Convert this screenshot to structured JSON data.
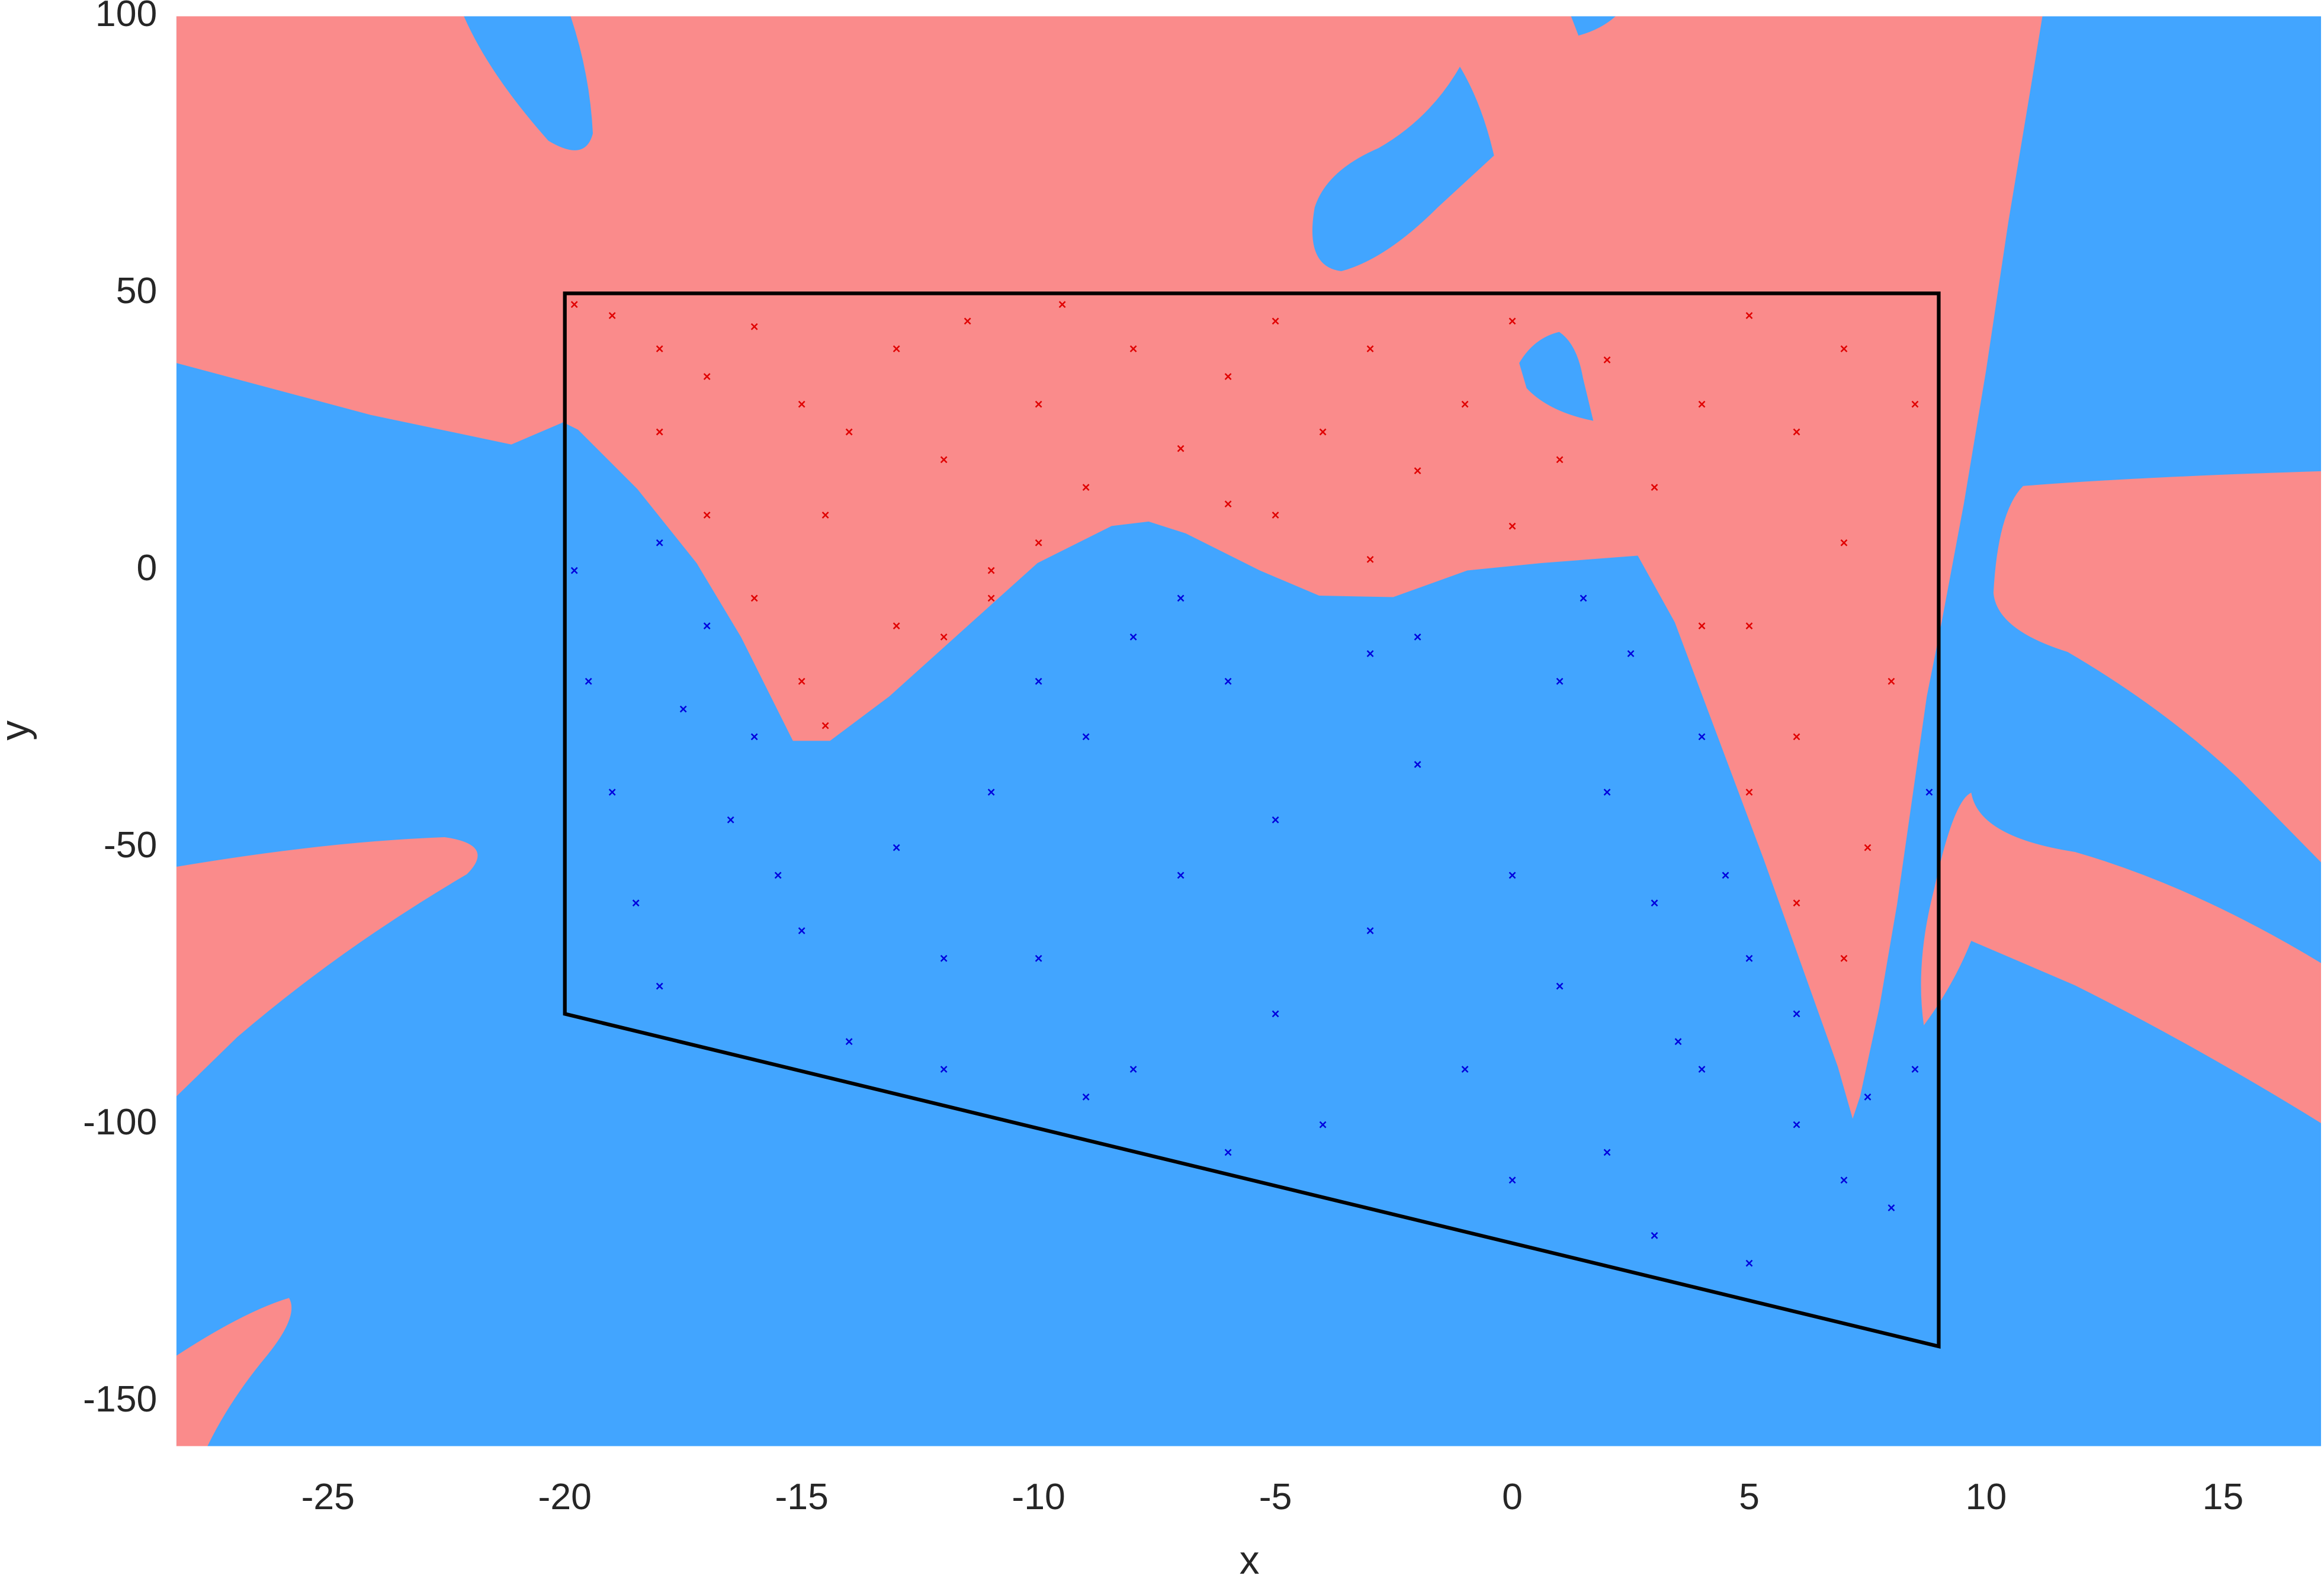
{
  "chart_data": {
    "type": "scatter",
    "x_label": "x",
    "y_label": "y",
    "xlim": [
      -28.2,
      17.07
    ],
    "ylim": [
      -158,
      100
    ],
    "xticks": [
      -25,
      -20,
      -15,
      -10,
      -5,
      0,
      5,
      10,
      15
    ],
    "yticks": [
      -150,
      -100,
      -50,
      0,
      50,
      100
    ],
    "grid": false,
    "boundary": {
      "color": "#000000",
      "x": [
        -20,
        9,
        9,
        -20
      ],
      "y": [
        50,
        50,
        -140,
        -80
      ]
    },
    "series": [
      {
        "color": "#e00000",
        "x": [
          -19.8,
          -19,
          -18,
          -17,
          -16,
          -15,
          -14.5,
          -14,
          -13,
          -12,
          -11.5,
          -11,
          -10,
          -9.5,
          -9,
          -8,
          -7,
          -6,
          -5,
          -5,
          -4,
          -3,
          -2,
          -1,
          0,
          0,
          1,
          2,
          3,
          4,
          5,
          5,
          6,
          6,
          7,
          7,
          7.5,
          8,
          8.5,
          -16,
          -15,
          -14.5,
          -13,
          -12,
          -11,
          -10,
          -17,
          -18,
          6,
          7,
          4,
          5,
          -6,
          -3
        ],
        "y": [
          48,
          46,
          40,
          35,
          44,
          30,
          10,
          25,
          40,
          20,
          45,
          0,
          30,
          48,
          15,
          40,
          22,
          35,
          45,
          10,
          25,
          40,
          18,
          30,
          45,
          8,
          20,
          38,
          15,
          30,
          46,
          -10,
          25,
          -30,
          40,
          5,
          -50,
          -20,
          30,
          -5,
          -20,
          -28,
          -10,
          -12,
          -5,
          5,
          10,
          25,
          -60,
          -70,
          -10,
          -40,
          12,
          2
        ]
      },
      {
        "color": "#0000dd",
        "x": [
          -19.8,
          -19.5,
          -19,
          -18.5,
          -18,
          -17,
          -16.5,
          -16,
          -15,
          -14,
          -13,
          -12,
          -11,
          -10,
          -9,
          -8,
          -7,
          -7,
          -6,
          -5,
          -5,
          -4,
          -3,
          -3,
          -2,
          -1,
          0,
          0,
          1,
          1,
          2,
          2,
          3,
          3,
          4,
          4,
          5,
          5,
          6,
          6,
          7,
          7.5,
          8,
          8.5,
          8.8,
          -18,
          -17.5,
          -15.5,
          -10,
          -8,
          -6,
          -2,
          1.5,
          2.5,
          4.5,
          -12,
          -9,
          3.5
        ],
        "y": [
          0,
          -20,
          -40,
          -60,
          -75,
          -10,
          -45,
          -30,
          -65,
          -85,
          -50,
          -90,
          -40,
          -70,
          -30,
          -90,
          -55,
          -5,
          -20,
          -80,
          -45,
          -100,
          -65,
          -15,
          -35,
          -90,
          -55,
          -110,
          -20,
          -75,
          -40,
          -105,
          -60,
          -120,
          -30,
          -90,
          -70,
          -125,
          -100,
          -80,
          -110,
          -95,
          -115,
          -90,
          -40,
          5,
          -25,
          -55,
          -20,
          -12,
          -105,
          -12,
          -5,
          -15,
          -55,
          -70,
          -95,
          -85
        ]
      }
    ]
  }
}
